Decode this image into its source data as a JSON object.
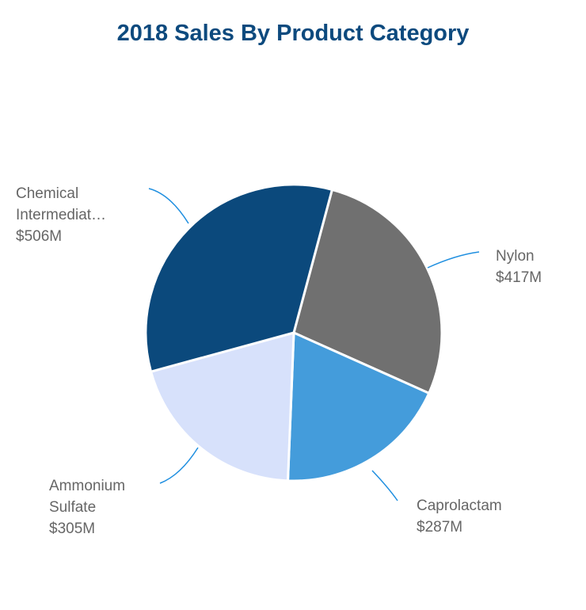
{
  "chart_data": {
    "type": "pie",
    "title": "2018 Sales By Product Category",
    "start_angle_deg": 15,
    "slices": [
      {
        "name": "Nylon",
        "label_lines": [
          "Nylon"
        ],
        "value": 417,
        "value_label": "$417M",
        "color": "#707070"
      },
      {
        "name": "Caprolactam",
        "label_lines": [
          "Caprolactam"
        ],
        "value": 287,
        "value_label": "$287M",
        "color": "#449cdb"
      },
      {
        "name": "Ammonium Sulfate",
        "label_lines": [
          "Ammonium",
          "Sulfate"
        ],
        "value": 305,
        "value_label": "$305M",
        "color": "#d7e1fb"
      },
      {
        "name": "Chemical Intermediates",
        "label_lines": [
          "Chemical",
          "Intermediat…"
        ],
        "value": 506,
        "value_label": "$506M",
        "color": "#0b497c"
      }
    ],
    "leader_color": "#1f8fe0"
  }
}
